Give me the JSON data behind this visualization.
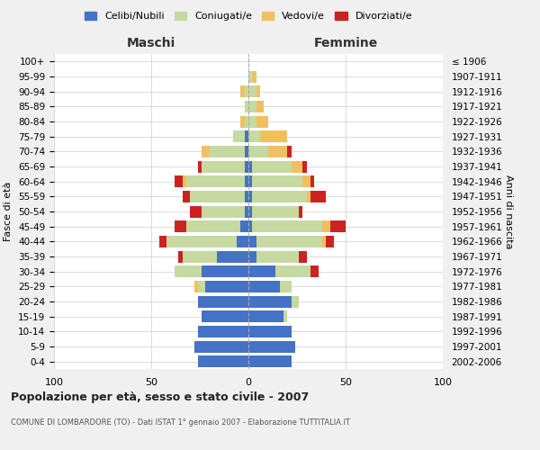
{
  "age_groups": [
    "0-4",
    "5-9",
    "10-14",
    "15-19",
    "20-24",
    "25-29",
    "30-34",
    "35-39",
    "40-44",
    "45-49",
    "50-54",
    "55-59",
    "60-64",
    "65-69",
    "70-74",
    "75-79",
    "80-84",
    "85-89",
    "90-94",
    "95-99",
    "100+"
  ],
  "birth_years": [
    "2002-2006",
    "1997-2001",
    "1992-1996",
    "1987-1991",
    "1982-1986",
    "1977-1981",
    "1972-1976",
    "1967-1971",
    "1962-1966",
    "1957-1961",
    "1952-1956",
    "1947-1951",
    "1942-1946",
    "1937-1941",
    "1932-1936",
    "1927-1931",
    "1922-1926",
    "1917-1921",
    "1912-1916",
    "1907-1911",
    "≤ 1906"
  ],
  "maschi": {
    "celibi": [
      26,
      28,
      26,
      24,
      26,
      22,
      24,
      16,
      6,
      4,
      2,
      2,
      2,
      2,
      2,
      2,
      0,
      0,
      0,
      0,
      0
    ],
    "coniugati": [
      0,
      0,
      0,
      0,
      0,
      4,
      14,
      18,
      36,
      28,
      22,
      28,
      30,
      22,
      18,
      6,
      2,
      2,
      2,
      0,
      0
    ],
    "vedovi": [
      0,
      0,
      0,
      0,
      0,
      2,
      0,
      0,
      0,
      0,
      0,
      0,
      2,
      0,
      4,
      0,
      2,
      0,
      2,
      0,
      0
    ],
    "divorziati": [
      0,
      0,
      0,
      0,
      0,
      0,
      0,
      2,
      4,
      6,
      6,
      4,
      4,
      2,
      0,
      0,
      0,
      0,
      0,
      0,
      0
    ]
  },
  "femmine": {
    "nubili": [
      22,
      24,
      22,
      18,
      22,
      16,
      14,
      4,
      4,
      2,
      2,
      2,
      2,
      2,
      0,
      0,
      0,
      0,
      0,
      0,
      0
    ],
    "coniugate": [
      0,
      0,
      0,
      2,
      4,
      6,
      18,
      22,
      34,
      36,
      24,
      28,
      26,
      20,
      10,
      6,
      4,
      4,
      4,
      2,
      0
    ],
    "vedove": [
      0,
      0,
      0,
      0,
      0,
      0,
      0,
      0,
      2,
      4,
      0,
      2,
      4,
      6,
      10,
      14,
      6,
      4,
      2,
      2,
      0
    ],
    "divorziate": [
      0,
      0,
      0,
      0,
      0,
      0,
      4,
      4,
      4,
      8,
      2,
      8,
      2,
      2,
      2,
      0,
      0,
      0,
      0,
      0,
      0
    ]
  },
  "colors": {
    "celibi": "#4472c4",
    "coniugati": "#c5d9a0",
    "vedovi": "#f0c060",
    "divorziati": "#cc2222"
  },
  "xlim": 100,
  "title": "Popolazione per età, sesso e stato civile - 2007",
  "subtitle": "COMUNE DI LOMBARDORE (TO) - Dati ISTAT 1° gennaio 2007 - Elaborazione TUTTITALIA.IT",
  "ylabel": "Fasce di età",
  "ylabel_right": "Anni di nascita",
  "xlabel_maschi": "Maschi",
  "xlabel_femmine": "Femmine",
  "legend_labels": [
    "Celibi/Nubili",
    "Coniugati/e",
    "Vedovi/e",
    "Divorziati/e"
  ],
  "bg_color": "#f0f0f0",
  "plot_bg_color": "#ffffff"
}
